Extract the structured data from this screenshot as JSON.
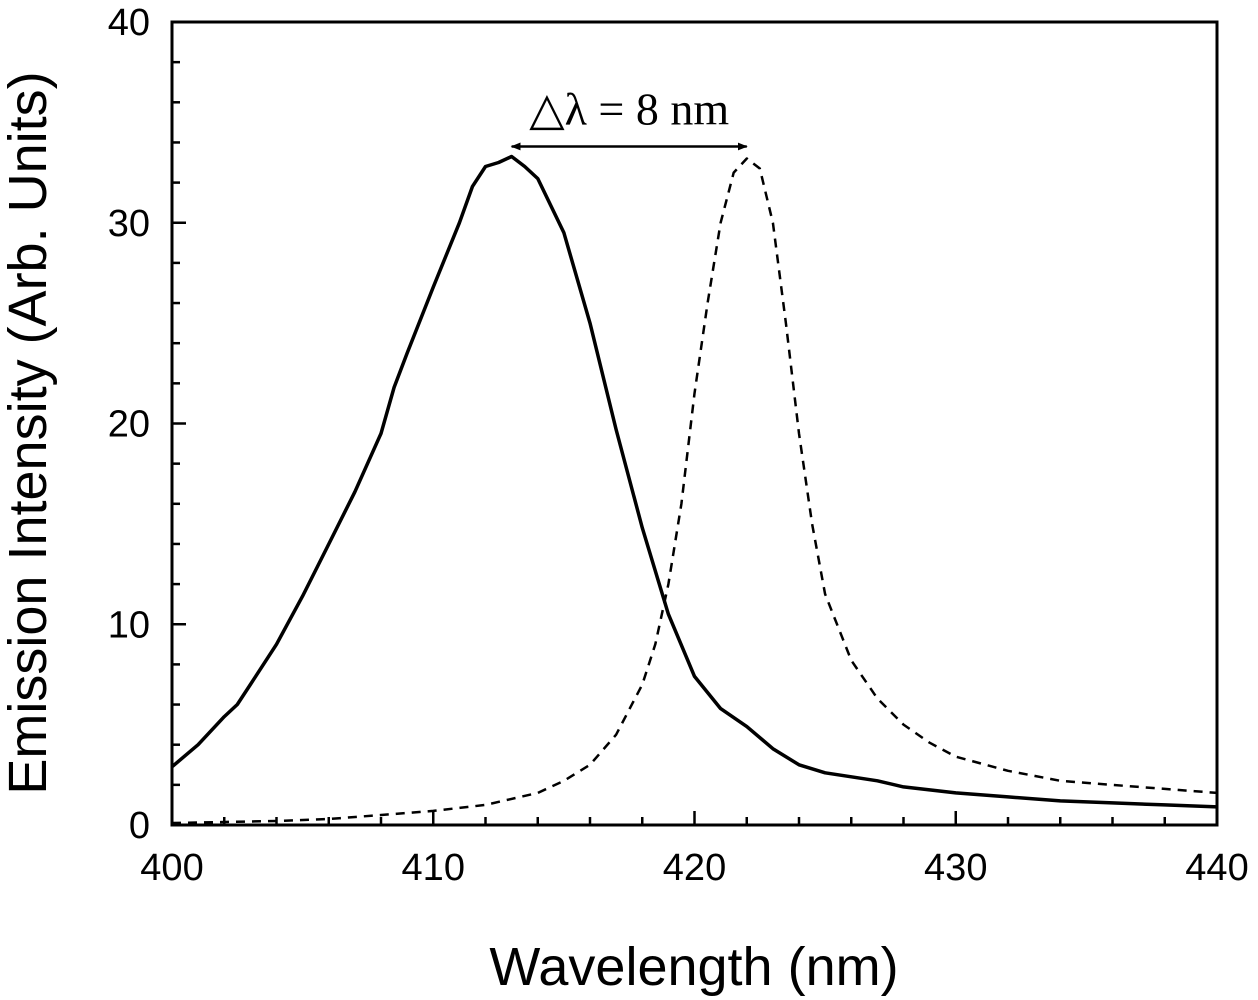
{
  "chart_data": {
    "type": "line",
    "title": "",
    "xlabel": "Wavelength (nm)",
    "ylabel": "Emission Intensity (Arb. Units)",
    "xlim": [
      400,
      440
    ],
    "ylim": [
      0,
      40
    ],
    "x_ticks": [
      400,
      410,
      420,
      430,
      440
    ],
    "y_ticks": [
      0,
      10,
      20,
      30,
      40
    ],
    "x_tick_labels": [
      "400",
      "410",
      "420",
      "430",
      "440"
    ],
    "y_tick_labels": [
      "0",
      "10",
      "20",
      "30",
      "40"
    ],
    "grid": false,
    "legend": "none",
    "series": [
      {
        "name": "solid",
        "style": "solid",
        "x": [
          400,
          401,
          402,
          402.5,
          403,
          404,
          405,
          406,
          407,
          408,
          408.5,
          409,
          410,
          411,
          411.5,
          412,
          412.5,
          413,
          413.5,
          414,
          415,
          416,
          417,
          418,
          419,
          420,
          421,
          422,
          423,
          424,
          425,
          426,
          427,
          428,
          430,
          432,
          434,
          436,
          438,
          440
        ],
        "values": [
          2.9,
          4.0,
          5.4,
          6.0,
          7.0,
          9.0,
          11.4,
          14.0,
          16.6,
          19.5,
          21.8,
          23.5,
          26.8,
          30.0,
          31.8,
          32.8,
          33.0,
          33.3,
          32.8,
          32.2,
          29.5,
          25.0,
          19.7,
          14.8,
          10.5,
          7.4,
          5.8,
          4.9,
          3.8,
          3.0,
          2.6,
          2.4,
          2.2,
          1.9,
          1.6,
          1.4,
          1.2,
          1.1,
          1.0,
          0.9
        ]
      },
      {
        "name": "dashed",
        "style": "dashed",
        "x": [
          400,
          402,
          404,
          406,
          408,
          410,
          412,
          414,
          415,
          416,
          417,
          418,
          418.5,
          419,
          419.5,
          420,
          420.5,
          421,
          421.5,
          422,
          422.5,
          423,
          423.5,
          424,
          424.5,
          425,
          426,
          427,
          428,
          429,
          430,
          432,
          434,
          436,
          438,
          440
        ],
        "values": [
          0.1,
          0.15,
          0.2,
          0.3,
          0.5,
          0.7,
          1.0,
          1.6,
          2.2,
          3.0,
          4.5,
          7.0,
          9.0,
          12.0,
          16.0,
          21.5,
          26.0,
          30.0,
          32.5,
          33.2,
          32.7,
          30.0,
          25.0,
          19.5,
          15.0,
          11.5,
          8.2,
          6.3,
          5.0,
          4.1,
          3.4,
          2.7,
          2.2,
          2.0,
          1.8,
          1.6
        ]
      }
    ],
    "annotation": {
      "text": "△λ = 8 nm",
      "x_start": 413,
      "x_end": 422,
      "y": 33.8
    }
  }
}
